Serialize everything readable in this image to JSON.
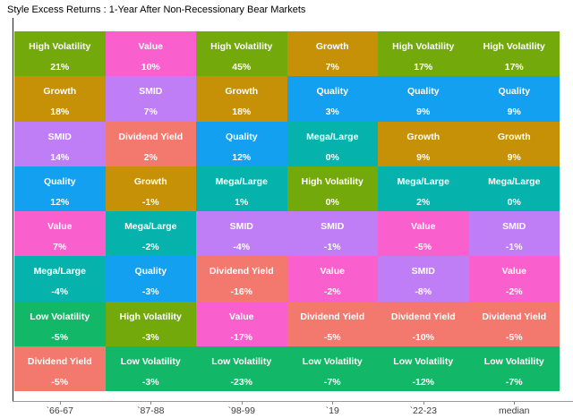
{
  "title": "Style Excess Returns : 1-Year After Non-Recessionary Bear Markets",
  "chart_data": {
    "type": "heatmap",
    "title": "Style Excess Returns : 1-Year After Non-Recessionary Bear Markets",
    "legend_position": "none",
    "grid": "off",
    "x_tick_labels": [
      "`66-67",
      "`87-88",
      "`98-99",
      "`19",
      "`22-23",
      "median"
    ],
    "style_colors": {
      "High Volatility": "#74a90b",
      "Growth": "#c69106",
      "SMID": "#bf7ef5",
      "Quality": "#14a0f0",
      "Value": "#f960cd",
      "Mega/Large": "#06b2ac",
      "Low Volatility": "#12b867",
      "Dividend Yield": "#f3786e"
    },
    "columns": [
      {
        "label": "`66-67",
        "cells": [
          {
            "style": "High Volatility",
            "value": "21%"
          },
          {
            "style": "Growth",
            "value": "18%"
          },
          {
            "style": "SMID",
            "value": "14%"
          },
          {
            "style": "Quality",
            "value": "12%"
          },
          {
            "style": "Value",
            "value": "7%"
          },
          {
            "style": "Mega/Large",
            "value": "-4%"
          },
          {
            "style": "Low Volatility",
            "value": "-5%"
          },
          {
            "style": "Dividend Yield",
            "value": "-5%"
          }
        ]
      },
      {
        "label": "`87-88",
        "cells": [
          {
            "style": "Value",
            "value": "10%"
          },
          {
            "style": "SMID",
            "value": "7%"
          },
          {
            "style": "Dividend Yield",
            "value": "2%"
          },
          {
            "style": "Growth",
            "value": "-1%"
          },
          {
            "style": "Mega/Large",
            "value": "-2%"
          },
          {
            "style": "Quality",
            "value": "-3%"
          },
          {
            "style": "High Volatility",
            "value": "-3%"
          },
          {
            "style": "Low Volatility",
            "value": "-3%"
          }
        ]
      },
      {
        "label": "`98-99",
        "cells": [
          {
            "style": "High Volatility",
            "value": "45%"
          },
          {
            "style": "Growth",
            "value": "18%"
          },
          {
            "style": "Quality",
            "value": "12%"
          },
          {
            "style": "Mega/Large",
            "value": "1%"
          },
          {
            "style": "SMID",
            "value": "-4%"
          },
          {
            "style": "Dividend Yield",
            "value": "-16%"
          },
          {
            "style": "Value",
            "value": "-17%"
          },
          {
            "style": "Low Volatility",
            "value": "-23%"
          }
        ]
      },
      {
        "label": "`19",
        "cells": [
          {
            "style": "Growth",
            "value": "7%"
          },
          {
            "style": "Quality",
            "value": "3%"
          },
          {
            "style": "Mega/Large",
            "value": "0%"
          },
          {
            "style": "High Volatility",
            "value": "0%"
          },
          {
            "style": "SMID",
            "value": "-1%"
          },
          {
            "style": "Value",
            "value": "-2%"
          },
          {
            "style": "Dividend Yield",
            "value": "-5%"
          },
          {
            "style": "Low Volatility",
            "value": "-7%"
          }
        ]
      },
      {
        "label": "`22-23",
        "cells": [
          {
            "style": "High Volatility",
            "value": "17%"
          },
          {
            "style": "Quality",
            "value": "9%"
          },
          {
            "style": "Growth",
            "value": "9%"
          },
          {
            "style": "Mega/Large",
            "value": "2%"
          },
          {
            "style": "Value",
            "value": "-5%"
          },
          {
            "style": "SMID",
            "value": "-8%"
          },
          {
            "style": "Dividend Yield",
            "value": "-10%"
          },
          {
            "style": "Low Volatility",
            "value": "-12%"
          }
        ]
      },
      {
        "label": "median",
        "cells": [
          {
            "style": "High Volatility",
            "value": "17%"
          },
          {
            "style": "Quality",
            "value": "9%"
          },
          {
            "style": "Growth",
            "value": "9%"
          },
          {
            "style": "Mega/Large",
            "value": "0%"
          },
          {
            "style": "SMID",
            "value": "-1%"
          },
          {
            "style": "Value",
            "value": "-2%"
          },
          {
            "style": "Dividend Yield",
            "value": "-5%"
          },
          {
            "style": "Low Volatility",
            "value": "-7%"
          }
        ]
      }
    ]
  }
}
